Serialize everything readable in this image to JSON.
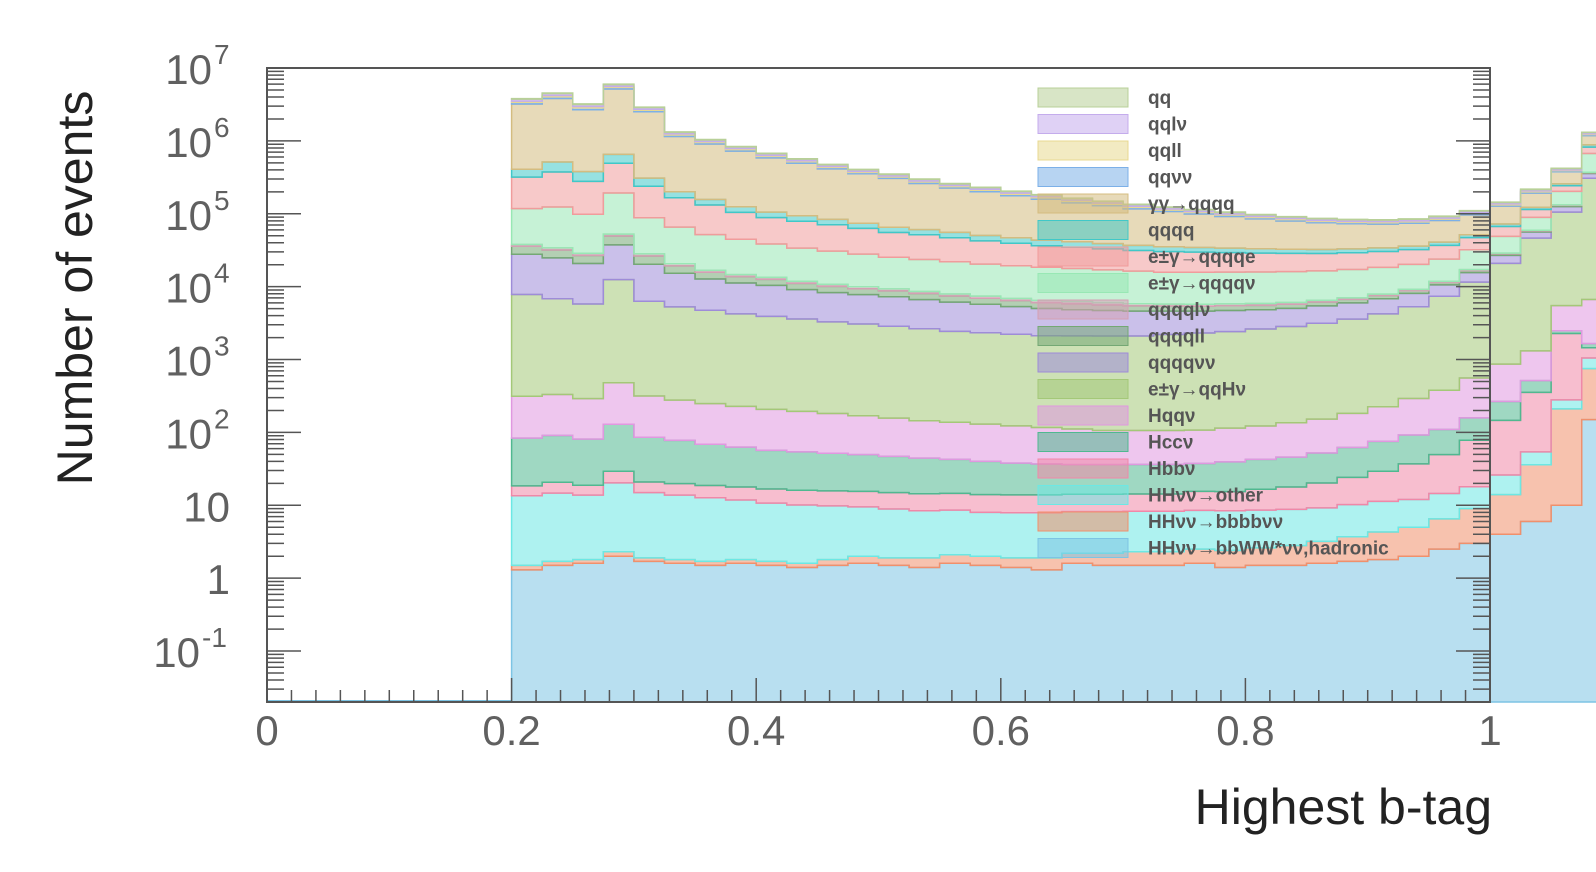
{
  "chart_data": {
    "type": "area",
    "xlabel": "Highest b-tag",
    "ylabel": "Number of events",
    "xlim": [
      0,
      1
    ],
    "ylim": [
      0.02,
      10000000
    ],
    "y_scale": "log",
    "x_ticks": [
      {
        "v": 0,
        "label": "0"
      },
      {
        "v": 0.2,
        "label": "0.2"
      },
      {
        "v": 0.4,
        "label": "0.4"
      },
      {
        "v": 0.6,
        "label": "0.6"
      },
      {
        "v": 0.8,
        "label": "0.8"
      },
      {
        "v": 1,
        "label": "1"
      }
    ],
    "y_ticks": [
      {
        "exp": -1,
        "base": "10",
        "sup": "-1"
      },
      {
        "exp": 0,
        "base": "1",
        "sup": ""
      },
      {
        "exp": 1,
        "base": "10",
        "sup": ""
      },
      {
        "exp": 2,
        "base": "10",
        "sup": "2"
      },
      {
        "exp": 3,
        "base": "10",
        "sup": "3"
      },
      {
        "exp": 4,
        "base": "10",
        "sup": "4"
      },
      {
        "exp": 5,
        "base": "10",
        "sup": "5"
      },
      {
        "exp": 6,
        "base": "10",
        "sup": "6"
      },
      {
        "exp": 7,
        "base": "10",
        "sup": "7"
      }
    ],
    "bin_start": 0.2,
    "bin_width": 0.025,
    "legend_position": "top-right",
    "legend": [
      "qq",
      "qqlν",
      "qqll",
      "qqνν",
      "γγ→qqqq",
      "qqqq",
      "e±γ→qqqqe",
      "e±γ→qqqqν",
      "qqqqlν",
      "qqqqll",
      "qqqqνν",
      "e±γ→qqHν",
      "Hqqν",
      "Hccν",
      "Hbbν",
      "HHνν→other",
      "HHνν→bbbbνν",
      "HHνν→bbWW*νν,hadronic"
    ],
    "series": [
      {
        "color": "#7dc4e4",
        "values": [
          1.3,
          1.5,
          1.6,
          2.0,
          1.7,
          1.6,
          1.5,
          1.6,
          1.5,
          1.4,
          1.5,
          1.6,
          1.5,
          1.4,
          1.6,
          1.5,
          1.4,
          1.3,
          1.6,
          1.5,
          1.5,
          1.5,
          1.6,
          1.4,
          1.5,
          1.5,
          1.6,
          1.7,
          1.8,
          2.0,
          2.5,
          3.0,
          4.0,
          6.0,
          10.0,
          150.0
        ]
      },
      {
        "name": "HHνν→bbbbνν",
        "color": "#f0906c",
        "values": [
          0.2,
          0.2,
          0.2,
          0.3,
          0.2,
          0.2,
          0.2,
          0.2,
          0.2,
          0.2,
          0.3,
          0.4,
          0.4,
          0.5,
          0.5,
          0.5,
          0.5,
          0.6,
          0.6,
          0.7,
          0.8,
          0.8,
          0.9,
          1.0,
          1.1,
          1.3,
          1.6,
          2.0,
          2.5,
          3.0,
          4.0,
          6.0,
          10.0,
          30.0,
          200.0,
          600.0
        ]
      },
      {
        "name": "HHνν→other",
        "color": "#6ce8e4",
        "values": [
          12,
          13,
          12,
          18,
          13,
          12,
          11,
          10,
          9,
          8.5,
          8,
          7.5,
          7,
          6.5,
          6.5,
          6,
          6,
          6,
          6,
          6,
          6,
          6,
          6,
          6,
          6,
          6,
          6,
          6.5,
          7,
          7,
          8,
          9,
          12,
          18,
          70,
          300
        ]
      },
      {
        "name": "Hbbν",
        "color": "#f088a8",
        "values": [
          5,
          6,
          5,
          9,
          6,
          6,
          6,
          6,
          6,
          6,
          6,
          6,
          6,
          6,
          6,
          6,
          6,
          6,
          6,
          6,
          6,
          6,
          7,
          7,
          8,
          9,
          11,
          14,
          18,
          25,
          35,
          60,
          120,
          300,
          2000,
          400
        ]
      },
      {
        "name": "Hccν",
        "color": "#50b890",
        "values": [
          65,
          70,
          62,
          100,
          65,
          58,
          50,
          45,
          40,
          38,
          36,
          34,
          32,
          30,
          28,
          26,
          24,
          23,
          22,
          22,
          22,
          22,
          22,
          24,
          26,
          28,
          32,
          38,
          46,
          55,
          60,
          80,
          120,
          160,
          200,
          200
        ]
      },
      {
        "name": "Hqqν",
        "color": "#e098e0",
        "values": [
          230,
          240,
          210,
          350,
          230,
          200,
          180,
          165,
          150,
          140,
          130,
          120,
          110,
          100,
          95,
          90,
          85,
          80,
          75,
          70,
          70,
          70,
          70,
          75,
          80,
          90,
          100,
          120,
          150,
          200,
          270,
          400,
          600,
          800,
          3000,
          5000
        ]
      },
      {
        "name": "e±γ→qqHν",
        "color": "#a4c878",
        "values": [
          7500,
          6500,
          5500,
          12000,
          6000,
          5000,
          4500,
          4000,
          3700,
          3400,
          3100,
          2900,
          2700,
          2500,
          2300,
          2200,
          2100,
          2000,
          2000,
          2000,
          2000,
          2100,
          2200,
          2300,
          2500,
          2700,
          3000,
          3400,
          4000,
          5000,
          7000,
          11000,
          20000,
          45000,
          100000,
          300000
        ]
      },
      {
        "name": "qqqqνν",
        "color": "#9e8cd8",
        "values": [
          20000,
          18000,
          15000,
          25000,
          14000,
          10000,
          8000,
          7000,
          6500,
          5500,
          5000,
          4700,
          4400,
          4000,
          3700,
          3400,
          3100,
          2900,
          2700,
          2600,
          2500,
          2400,
          2300,
          2300,
          2200,
          2200,
          2300,
          2400,
          2600,
          2800,
          3200,
          4000,
          6000,
          10000,
          20000,
          50000
        ]
      },
      {
        "name": "qqqqll",
        "color": "#74a874",
        "values": [
          8000,
          7000,
          6000,
          12000,
          6000,
          4000,
          3000,
          2500,
          2200,
          2000,
          1800,
          1600,
          1500,
          1400,
          1300,
          1200,
          1100,
          1000,
          1000,
          900,
          850,
          800,
          780,
          750,
          720,
          700,
          700,
          700,
          700,
          700,
          800,
          1000,
          1300,
          2000,
          5000,
          10000
        ]
      },
      {
        "name": "qqqqlν",
        "color": "#d4a0b4",
        "values": [
          2000,
          2200,
          1800,
          3000,
          1800,
          1300,
          1000,
          900,
          800,
          700,
          650,
          600,
          550,
          520,
          500,
          480,
          460,
          440,
          420,
          400,
          380,
          360,
          350,
          340,
          330,
          330,
          330,
          340,
          360,
          400,
          450,
          550,
          700,
          1000,
          2000,
          5000
        ]
      },
      {
        "name": "e±γ→qqqqν",
        "color": "#98e8b4",
        "values": [
          80000,
          90000,
          70000,
          140000,
          60000,
          45000,
          35000,
          30000,
          25000,
          22000,
          20000,
          18000,
          16000,
          15000,
          14000,
          13000,
          12500,
          12000,
          11500,
          11000,
          10500,
          10000,
          10000,
          10000,
          10000,
          10000,
          10000,
          10200,
          10500,
          11000,
          12000,
          15000,
          20000,
          30000,
          70000,
          300000
        ]
      },
      {
        "name": "e±γ→qqqqe",
        "color": "#f09c9c",
        "values": [
          200000,
          250000,
          180000,
          300000,
          150000,
          100000,
          80000,
          60000,
          50000,
          45000,
          40000,
          35000,
          30000,
          28000,
          25000,
          22000,
          20000,
          18000,
          17000,
          16000,
          15000,
          14500,
          14000,
          13500,
          13000,
          12500,
          12000,
          12000,
          12000,
          12000,
          13000,
          15000,
          18000,
          25000,
          40000,
          150000
        ]
      },
      {
        "name": "qqqq",
        "color": "#40c8c8",
        "values": [
          90000,
          140000,
          100000,
          160000,
          70000,
          35000,
          25000,
          20000,
          17000,
          15000,
          13000,
          11000,
          10000,
          9000,
          8500,
          8000,
          7500,
          7000,
          6500,
          6000,
          5500,
          5000,
          4700,
          4500,
          4200,
          4000,
          3800,
          3700,
          3700,
          3800,
          4000,
          4500,
          5500,
          8000,
          15000,
          60000
        ]
      },
      {
        "name": "γγ→qqqq",
        "color": "#d4bc80",
        "values": [
          2800000,
          3300000,
          2300000,
          4500000,
          2200000,
          950000,
          750000,
          600000,
          480000,
          400000,
          330000,
          280000,
          240000,
          200000,
          170000,
          150000,
          130000,
          115000,
          100000,
          90000,
          80000,
          72000,
          65000,
          58000,
          52000,
          47000,
          43000,
          40000,
          38000,
          38000,
          40000,
          45000,
          55000,
          70000,
          120000,
          300000
        ]
      },
      {
        "name": "qqνν",
        "color": "#7cb0e8",
        "values": [
          180000,
          220000,
          160000,
          260000,
          120000,
          55000,
          42000,
          35000,
          28000,
          23000,
          19000,
          16000,
          14000,
          12000,
          10500,
          9500,
          8500,
          7500,
          6800,
          6200,
          5600,
          5000,
          4600,
          4200,
          3900,
          3600,
          3400,
          3300,
          3300,
          3400,
          3600,
          4200,
          5200,
          7500,
          13000,
          40000
        ]
      },
      {
        "name": "qqll",
        "color": "#e8d890",
        "values": [
          130000,
          160000,
          120000,
          190000,
          90000,
          40000,
          30000,
          25000,
          20000,
          17000,
          14000,
          12000,
          10500,
          9000,
          8000,
          7200,
          6500,
          5800,
          5200,
          4700,
          4200,
          3800,
          3500,
          3200,
          3000,
          2800,
          2600,
          2500,
          2500,
          2600,
          2800,
          3300,
          4000,
          6000,
          10000,
          30000
        ]
      },
      {
        "name": "qqlν",
        "color": "#c4acec",
        "values": [
          220000,
          270000,
          200000,
          320000,
          150000,
          65000,
          50000,
          42000,
          34000,
          28000,
          23000,
          19000,
          16500,
          14500,
          12500,
          11000,
          10000,
          9000,
          8200,
          7400,
          6700,
          6100,
          5500,
          5000,
          4600,
          4300,
          4000,
          3900,
          3900,
          4000,
          4300,
          5000,
          6200,
          9000,
          16000,
          50000
        ]
      },
      {
        "name": "qq",
        "color": "#b8d098",
        "values": [
          60000,
          70000,
          55000,
          90000,
          40000,
          18000,
          14000,
          11000,
          9000,
          7500,
          6200,
          5200,
          4500,
          3900,
          3400,
          3000,
          2700,
          2400,
          2200,
          2000,
          1800,
          1650,
          1500,
          1400,
          1300,
          1200,
          1150,
          1100,
          1100,
          1150,
          1250,
          1450,
          1800,
          2600,
          4500,
          14000
        ]
      }
    ]
  }
}
